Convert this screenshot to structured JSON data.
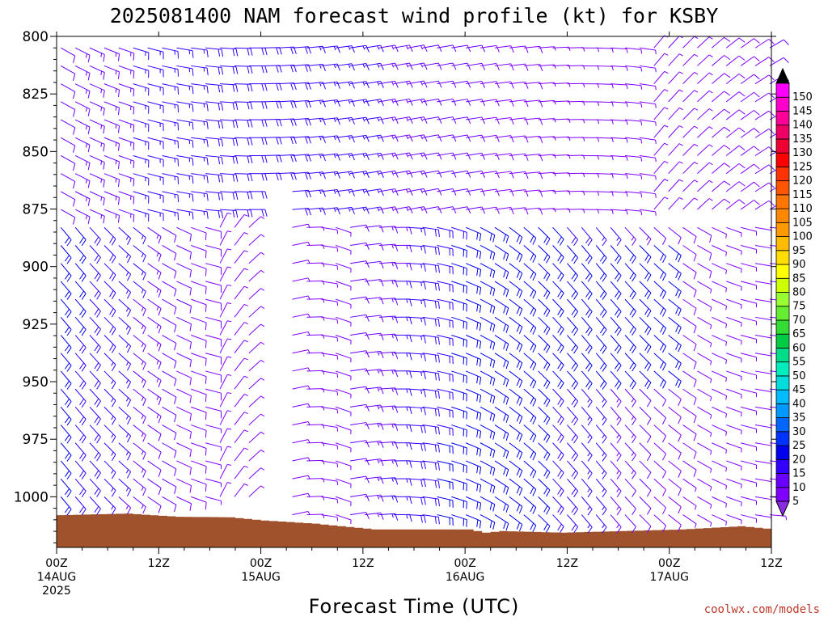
{
  "chart_data": {
    "type": "wind-barb",
    "title": "2025081400 NAM forecast wind profile (kt) for KSBY",
    "xlabel": "Forecast Time (UTC)",
    "credit": "coolwx.com/models",
    "y_axis": {
      "label": "",
      "ticks": [
        "800",
        "825",
        "850",
        "875",
        "900",
        "925",
        "950",
        "975",
        "1000"
      ],
      "range_hpa": [
        800,
        1022
      ],
      "inverted": true
    },
    "x_axis": {
      "ticks": [
        {
          "hour": 0,
          "line1": "00Z",
          "line2": "14AUG",
          "line3": "2025"
        },
        {
          "hour": 12,
          "line1": "12Z",
          "line2": "",
          "line3": ""
        },
        {
          "hour": 24,
          "line1": "00Z",
          "line2": "15AUG",
          "line3": ""
        },
        {
          "hour": 36,
          "line1": "12Z",
          "line2": "",
          "line3": ""
        },
        {
          "hour": 48,
          "line1": "00Z",
          "line2": "16AUG",
          "line3": ""
        },
        {
          "hour": 60,
          "line1": "12Z",
          "line2": "",
          "line3": ""
        },
        {
          "hour": 72,
          "line1": "00Z",
          "line2": "17AUG",
          "line3": ""
        },
        {
          "hour": 84,
          "line1": "12Z",
          "line2": "",
          "line3": ""
        }
      ],
      "range_hours": [
        0,
        84
      ]
    },
    "colorbar": {
      "levels": [
        "5",
        "10",
        "15",
        "20",
        "25",
        "30",
        "35",
        "40",
        "45",
        "50",
        "55",
        "60",
        "65",
        "70",
        "75",
        "80",
        "85",
        "90",
        "95",
        "100",
        "105",
        "110",
        "115",
        "120",
        "125",
        "130",
        "135",
        "140",
        "145",
        "150"
      ],
      "colors": [
        "#7f00ff",
        "#6a00ff",
        "#3300ff",
        "#0000ee",
        "#0033ff",
        "#0066ff",
        "#0099ff",
        "#00bbff",
        "#00dddd",
        "#00eebb",
        "#00dd88",
        "#00cc44",
        "#33dd33",
        "#66ee33",
        "#99ff33",
        "#ccff00",
        "#ffff00",
        "#ffdd00",
        "#ffbb00",
        "#ff9900",
        "#ff8800",
        "#ff7700",
        "#ff5500",
        "#ff3300",
        "#ff0000",
        "#ee0033",
        "#ee0066",
        "#ff0099",
        "#ff00cc",
        "#ff00ff"
      ],
      "under_color": "#8a2be2",
      "over_color": "#000000"
    },
    "terrain": {
      "color": "#a0522d",
      "surface_pressure_hpa": [
        {
          "hour": 0,
          "p": 1008.0
        },
        {
          "hour": 8,
          "p": 1007.3
        },
        {
          "hour": 10,
          "p": 1007.8
        },
        {
          "hour": 14,
          "p": 1008.7
        },
        {
          "hour": 20,
          "p": 1008.9
        },
        {
          "hour": 24,
          "p": 1010.3
        },
        {
          "hour": 30,
          "p": 1011.7
        },
        {
          "hour": 37,
          "p": 1014.2
        },
        {
          "hour": 48,
          "p": 1014.2
        },
        {
          "hour": 50,
          "p": 1015.6
        },
        {
          "hour": 52,
          "p": 1014.9
        },
        {
          "hour": 59,
          "p": 1015.6
        },
        {
          "hour": 66,
          "p": 1014.9
        },
        {
          "hour": 73,
          "p": 1014.2
        },
        {
          "hour": 80,
          "p": 1012.8
        },
        {
          "hour": 84,
          "p": 1014.2
        }
      ]
    }
  }
}
